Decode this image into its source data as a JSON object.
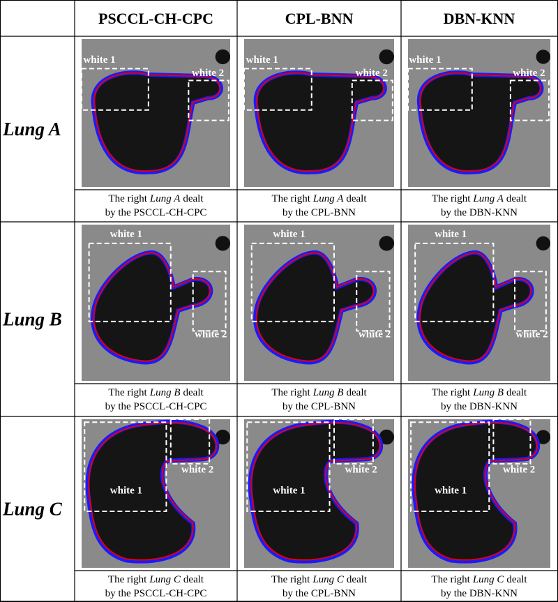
{
  "header": {
    "columns": [
      "PSCCL-CH-CPC",
      "CPL-BNN",
      "DBN-KNN"
    ]
  },
  "rows": [
    {
      "label": "Lung A",
      "cells": [
        {
          "box_labels": [
            "white 2",
            "white 1"
          ],
          "caption": [
            "The right",
            "Lung A",
            "dealt",
            "by the PSCCL-CH-CPC"
          ]
        },
        {
          "box_labels": [
            "white 2",
            "white 1"
          ],
          "caption": [
            "The right",
            "Lung A",
            "dealt",
            "by the CPL-BNN"
          ]
        },
        {
          "box_labels": [
            "white 2",
            "white 1"
          ],
          "caption": [
            "The right",
            "Lung A",
            "dealt",
            "by the DBN-KNN"
          ]
        }
      ]
    },
    {
      "label": "Lung B",
      "cells": [
        {
          "box_labels": [
            "white 2",
            "white 1"
          ],
          "caption": [
            "The right",
            "Lung B",
            "dealt",
            "by the PSCCL-CH-CPC"
          ]
        },
        {
          "box_labels": [
            "white 2",
            "white 1"
          ],
          "caption": [
            "The right",
            "Lung B",
            "dealt",
            "by the CPL-BNN"
          ]
        },
        {
          "box_labels": [
            "white 2",
            "white 1"
          ],
          "caption": [
            "The right",
            "Lung B",
            "dealt",
            "by the DBN-KNN"
          ]
        }
      ]
    },
    {
      "label": "Lung C",
      "cells": [
        {
          "box_labels": [
            "white 2",
            "white 1"
          ],
          "caption": [
            "The right",
            "Lung C",
            "dealt",
            "by the PSCCL-CH-CPC"
          ]
        },
        {
          "box_labels": [
            "white 2",
            "white 1"
          ],
          "caption": [
            "The right",
            "Lung C",
            "dealt",
            "by the CPL-BNN"
          ]
        },
        {
          "box_labels": [
            "white 2",
            "white 1"
          ],
          "caption": [
            "The right",
            "Lung C",
            "dealt",
            "by the DBN-KNN"
          ]
        }
      ]
    }
  ]
}
